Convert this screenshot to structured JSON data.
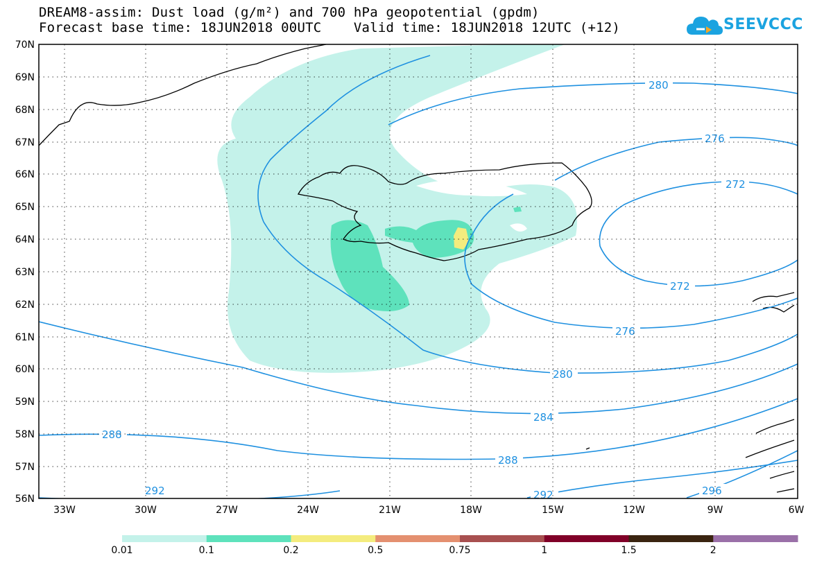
{
  "title": {
    "line1": "DREAM8-assim: Dust load (g/m²) and 700 hPa geopotential (gpdm)",
    "line2": "Forecast base time: 18JUN2018 00UTC    Valid time: 18JUN2018 12UTC (+12)"
  },
  "logo": {
    "text": "SEEVCCC",
    "icon": "cloud-logo-icon"
  },
  "map": {
    "lat_labels": [
      "70N",
      "69N",
      "68N",
      "67N",
      "66N",
      "65N",
      "64N",
      "63N",
      "62N",
      "61N",
      "60N",
      "59N",
      "58N",
      "57N",
      "56N"
    ],
    "lon_labels": [
      "33W",
      "30W",
      "27W",
      "24W",
      "21W",
      "18W",
      "15W",
      "12W",
      "9W",
      "6W"
    ],
    "contour_labels": [
      "280",
      "276",
      "272",
      "272",
      "276",
      "280",
      "284",
      "288",
      "288",
      "292",
      "292",
      "296"
    ]
  },
  "colorbar": {
    "labels": [
      "0.01",
      "0.1",
      "0.2",
      "0.5",
      "0.75",
      "1",
      "1.5",
      "2"
    ],
    "colors": [
      "#c4f2ea",
      "#5ee2bc",
      "#f4ec7e",
      "#e49070",
      "#a85050",
      "#800028",
      "#3a2410",
      "#9a70a8"
    ]
  },
  "colors": {
    "contour": "#1e90e0",
    "land_dust_light": "#c4f2ea",
    "dust_mid": "#5ee2bc",
    "dust_high": "#f4ec7e"
  }
}
